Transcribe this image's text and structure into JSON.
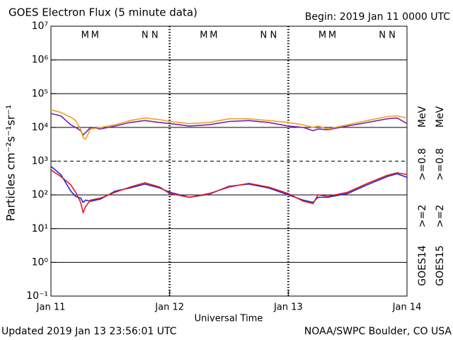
{
  "chart_data": {
    "type": "line",
    "title": "GOES Electron Flux (5 minute data)",
    "subtitle": "Begin: 2019 Jan 11 0000 UTC",
    "x_label": "Universal Time",
    "y_label": "Particles cm⁻²s⁻¹sr⁻¹",
    "footer_left": "Updated 2019 Jan 13 23:56:01 UTC",
    "footer_right": "NOAA/SWPC Boulder, CO USA",
    "log_y": true,
    "grid": true,
    "threshold": 1000,
    "xlim": [
      0,
      72
    ],
    "xticks": [
      {
        "value": 0,
        "label": "Jan 11"
      },
      {
        "value": 24,
        "label": "Jan 12"
      },
      {
        "value": 48,
        "label": "Jan 13"
      },
      {
        "value": 72,
        "label": "Jan 14"
      }
    ],
    "ylim": [
      0.1,
      10000000
    ],
    "yticks": [
      {
        "value": 0.1,
        "label": "10⁻¹"
      },
      {
        "value": 1,
        "label": "10⁰"
      },
      {
        "value": 10,
        "label": "10¹"
      },
      {
        "value": 100,
        "label": "10²"
      },
      {
        "value": 1000,
        "label": "10³"
      },
      {
        "value": 10000,
        "label": "10⁴"
      },
      {
        "value": 100000,
        "label": "10⁵"
      },
      {
        "value": 1000000,
        "label": "10⁶"
      },
      {
        "value": 10000000,
        "label": "10⁷"
      }
    ],
    "legend_groups": [
      {
        "label": "GOES14",
        "unit": "MeV"
      },
      {
        "label": "GOES15",
        "unit": "MeV"
      }
    ],
    "x": [
      0,
      2,
      4,
      5,
      6,
      6.5,
      7,
      8,
      10,
      13,
      16,
      19,
      22,
      24,
      28,
      32,
      36,
      40,
      44,
      48,
      51,
      53,
      54,
      56,
      60,
      64,
      68,
      70,
      72
    ],
    "series": [
      {
        "name": ">=2",
        "group": 0,
        "color": "#2424d8",
        "values": [
          700,
          400,
          130,
          90,
          80,
          60,
          70,
          65,
          75,
          130,
          160,
          210,
          160,
          120,
          85,
          105,
          180,
          210,
          160,
          100,
          70,
          60,
          85,
          85,
          110,
          200,
          350,
          420,
          330
        ]
      },
      {
        "name": ">=0.8",
        "group": 0,
        "color": "#7a1fa8",
        "values": [
          26000,
          22000,
          12000,
          10000,
          8000,
          6000,
          7000,
          10000,
          9000,
          11000,
          14000,
          16000,
          14000,
          13000,
          11000,
          12000,
          15000,
          16000,
          14000,
          11000,
          10000,
          8000,
          9000,
          8500,
          11000,
          14000,
          18000,
          19000,
          13000
        ]
      },
      {
        "name": ">=2",
        "group": 1,
        "color": "#e01a1a",
        "values": [
          550,
          350,
          200,
          120,
          60,
          30,
          45,
          70,
          80,
          120,
          170,
          230,
          170,
          110,
          85,
          110,
          170,
          220,
          170,
          110,
          65,
          55,
          100,
          90,
          120,
          220,
          380,
          450,
          400
        ]
      },
      {
        "name": ">=0.8",
        "group": 1,
        "color": "#f0a020",
        "values": [
          33000,
          28000,
          20000,
          16000,
          9000,
          5000,
          4500,
          9000,
          10000,
          12000,
          16000,
          19000,
          17000,
          15000,
          13000,
          14000,
          18000,
          18000,
          16000,
          14000,
          12000,
          10000,
          11000,
          9000,
          12000,
          16000,
          21000,
          22000,
          19000
        ]
      }
    ],
    "annotations": [
      {
        "text": "M",
        "x": 6.9,
        "color": "#2424d8"
      },
      {
        "text": "M",
        "x": 8.9,
        "color": "#e01a1a"
      },
      {
        "text": "N",
        "x": 19.0,
        "color": "#2424d8"
      },
      {
        "text": "N",
        "x": 21.0,
        "color": "#e01a1a"
      },
      {
        "text": "M",
        "x": 30.9,
        "color": "#2424d8"
      },
      {
        "text": "M",
        "x": 32.9,
        "color": "#e01a1a"
      },
      {
        "text": "N",
        "x": 43.0,
        "color": "#2424d8"
      },
      {
        "text": "N",
        "x": 45.0,
        "color": "#e01a1a"
      },
      {
        "text": "M",
        "x": 54.9,
        "color": "#2424d8"
      },
      {
        "text": "M",
        "x": 56.9,
        "color": "#e01a1a"
      },
      {
        "text": "N",
        "x": 67.0,
        "color": "#2424d8"
      },
      {
        "text": "N",
        "x": 69.0,
        "color": "#e01a1a"
      }
    ]
  }
}
